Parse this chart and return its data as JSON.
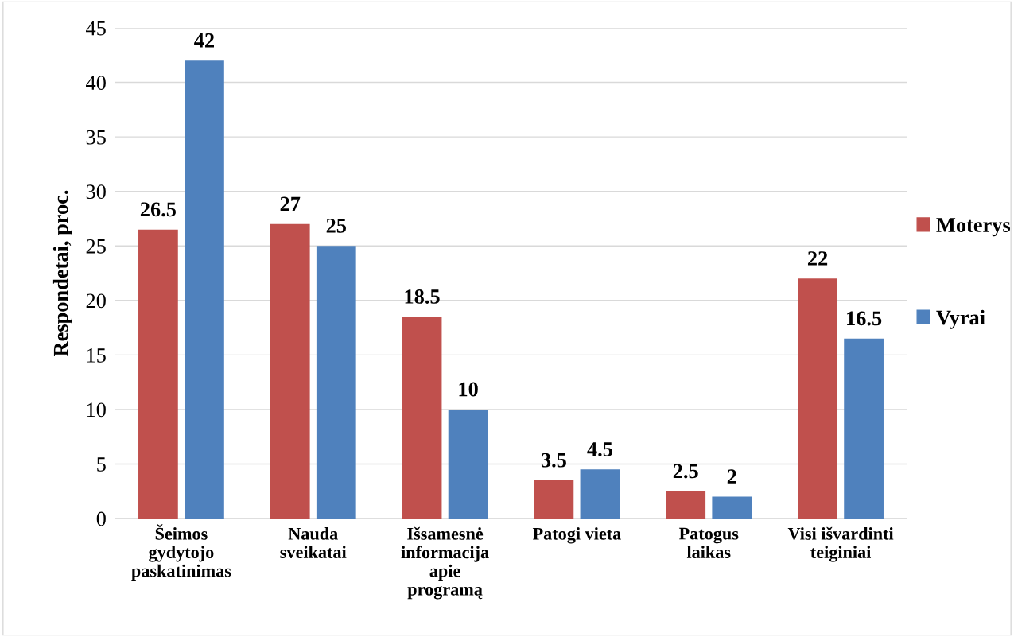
{
  "chart_data": {
    "type": "bar",
    "ylabel": "Respondetai, proc.",
    "categories": [
      "Šeimos\ngydytojo\npaskatinimas",
      "Nauda\nsveikatai",
      "Išsamesnė\ninformacija\napie\nprogramą",
      "Patogi vieta",
      "Patogus\nlaikas",
      "Visi išvardinti\nteiginiai"
    ],
    "series": [
      {
        "name": "Moterys",
        "color": "#c0504d",
        "values": [
          26.5,
          27,
          18.5,
          3.5,
          2.5,
          22
        ]
      },
      {
        "name": "Vyrai",
        "color": "#4f81bd",
        "values": [
          42,
          25,
          10,
          4.5,
          2,
          16.5
        ]
      }
    ],
    "ylim": [
      0,
      45
    ],
    "yticks": [
      0,
      5,
      10,
      15,
      20,
      25,
      30,
      35,
      40,
      45
    ],
    "grid": "y",
    "legend": "right",
    "data_labels": true
  }
}
